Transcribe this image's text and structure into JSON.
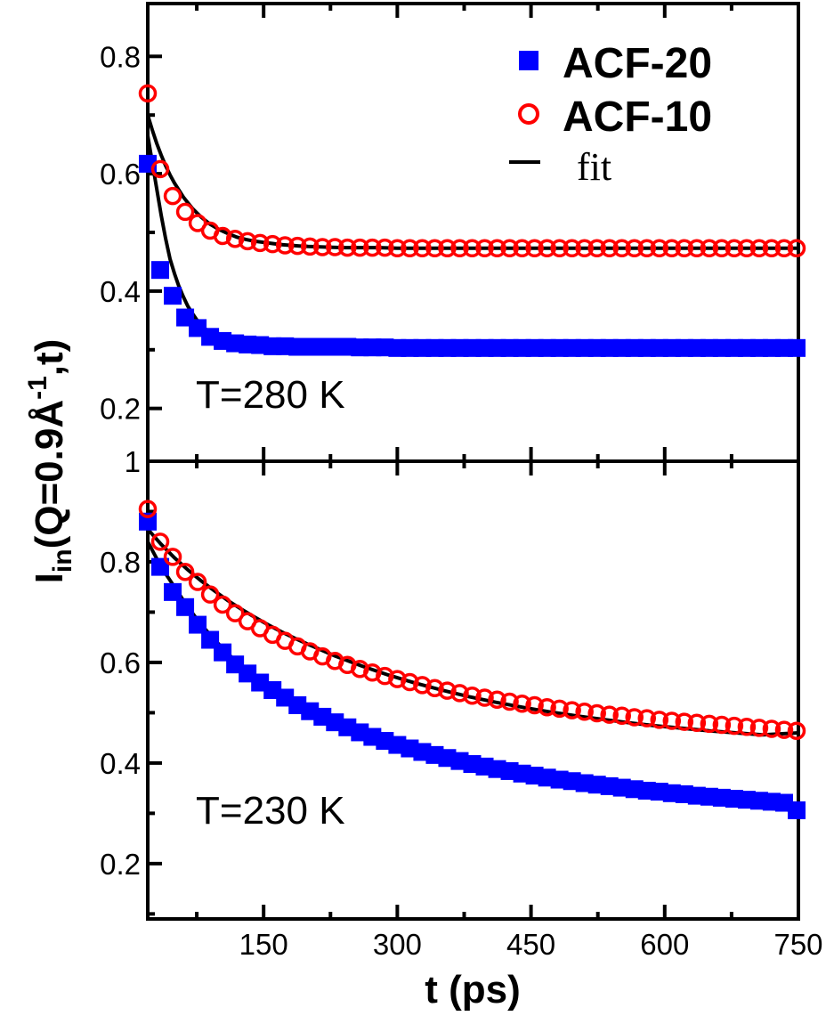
{
  "chart_data": [
    {
      "type": "scatter",
      "panel": "top",
      "annotation": "T=280 K",
      "xlim": [
        20,
        750
      ],
      "ylim": [
        0.11,
        0.89
      ],
      "y_ticks": [
        "0.2",
        "0.4",
        "0.6",
        "0.8"
      ],
      "legend": {
        "placement": "top-right",
        "entries": [
          "ACF-20",
          "ACF-10",
          "fit"
        ]
      },
      "colors": {
        "ACF-20": "#0000ff",
        "ACF-10": "#ff0000",
        "fit": "#000000"
      },
      "series": [
        {
          "name": "ACF-20",
          "marker": "filled-square",
          "x": [
            20,
            34,
            48,
            62,
            76,
            90,
            104,
            118,
            132,
            146,
            160,
            174,
            188,
            202,
            216,
            230,
            244,
            258,
            272,
            286,
            300,
            314,
            328,
            342,
            356,
            370,
            384,
            398,
            412,
            426,
            440,
            454,
            468,
            482,
            496,
            510,
            524,
            538,
            552,
            566,
            580,
            594,
            608,
            622,
            636,
            650,
            664,
            678,
            692,
            706,
            720,
            734,
            748
          ],
          "y": [
            0.617,
            0.436,
            0.392,
            0.355,
            0.337,
            0.322,
            0.315,
            0.311,
            0.309,
            0.308,
            0.306,
            0.306,
            0.305,
            0.305,
            0.305,
            0.305,
            0.305,
            0.304,
            0.304,
            0.304,
            0.303,
            0.303,
            0.303,
            0.303,
            0.303,
            0.303,
            0.303,
            0.303,
            0.303,
            0.303,
            0.303,
            0.303,
            0.303,
            0.303,
            0.303,
            0.303,
            0.303,
            0.303,
            0.303,
            0.303,
            0.303,
            0.303,
            0.303,
            0.303,
            0.303,
            0.303,
            0.303,
            0.303,
            0.303,
            0.303,
            0.303,
            0.303,
            0.303
          ]
        },
        {
          "name": "ACF-10",
          "marker": "open-circle",
          "x": [
            20,
            34,
            48,
            62,
            76,
            90,
            104,
            118,
            132,
            146,
            160,
            174,
            188,
            202,
            216,
            230,
            244,
            258,
            272,
            286,
            300,
            314,
            328,
            342,
            356,
            370,
            384,
            398,
            412,
            426,
            440,
            454,
            468,
            482,
            496,
            510,
            524,
            538,
            552,
            566,
            580,
            594,
            608,
            622,
            636,
            650,
            664,
            678,
            692,
            706,
            720,
            734,
            748
          ],
          "y": [
            0.737,
            0.608,
            0.562,
            0.535,
            0.516,
            0.503,
            0.494,
            0.489,
            0.485,
            0.482,
            0.48,
            0.478,
            0.477,
            0.476,
            0.475,
            0.475,
            0.474,
            0.474,
            0.474,
            0.474,
            0.473,
            0.473,
            0.473,
            0.473,
            0.473,
            0.473,
            0.473,
            0.473,
            0.473,
            0.473,
            0.473,
            0.473,
            0.473,
            0.473,
            0.473,
            0.473,
            0.473,
            0.473,
            0.473,
            0.473,
            0.473,
            0.473,
            0.473,
            0.473,
            0.473,
            0.473,
            0.473,
            0.473,
            0.473,
            0.473,
            0.473,
            0.473,
            0.473
          ]
        },
        {
          "name": "fit",
          "marker": "line",
          "x": [
            6,
            10,
            15,
            20,
            25,
            30,
            35,
            40,
            45,
            50,
            55,
            60,
            65,
            70,
            75,
            80,
            85,
            90,
            95,
            100,
            110,
            120,
            130,
            140,
            150,
            160,
            170,
            180,
            190,
            200,
            220,
            240,
            260,
            280,
            300,
            340,
            380,
            420,
            460,
            500,
            550,
            600,
            650,
            700,
            750
          ],
          "y": [
            0.785,
            0.74,
            0.7,
            0.665,
            0.62,
            0.575,
            0.53,
            0.49,
            0.455,
            0.43,
            0.408,
            0.39,
            0.374,
            0.362,
            0.351,
            0.342,
            0.335,
            0.328,
            0.323,
            0.319,
            0.313,
            0.309,
            0.307,
            0.306,
            0.305,
            0.304,
            0.304,
            0.303,
            0.303,
            0.303,
            0.303,
            0.303,
            0.303,
            0.303,
            0.303,
            0.303,
            0.303,
            0.303,
            0.303,
            0.303,
            0.303,
            0.303,
            0.303,
            0.303,
            0.303
          ]
        },
        {
          "name": "fit",
          "marker": "line",
          "x": [
            6,
            10,
            15,
            20,
            25,
            30,
            35,
            40,
            45,
            50,
            60,
            70,
            80,
            90,
            100,
            110,
            120,
            130,
            140,
            150,
            160,
            170,
            180,
            190,
            200,
            220,
            240,
            260,
            280,
            300,
            340,
            380,
            420,
            460,
            500,
            550,
            600,
            650,
            700,
            750
          ],
          "y": [
            0.8,
            0.765,
            0.728,
            0.7,
            0.675,
            0.652,
            0.632,
            0.614,
            0.598,
            0.584,
            0.56,
            0.541,
            0.526,
            0.514,
            0.505,
            0.498,
            0.492,
            0.488,
            0.485,
            0.483,
            0.481,
            0.479,
            0.478,
            0.477,
            0.476,
            0.475,
            0.474,
            0.474,
            0.474,
            0.473,
            0.473,
            0.473,
            0.473,
            0.473,
            0.473,
            0.473,
            0.473,
            0.473,
            0.473,
            0.473
          ]
        }
      ]
    },
    {
      "type": "scatter",
      "panel": "bottom",
      "annotation": "T=230 K",
      "xlim": [
        20,
        750
      ],
      "ylim": [
        0.09,
        1.0
      ],
      "y_ticks": [
        "0.2",
        "0.4",
        "0.6",
        "0.8",
        "1"
      ],
      "x_ticks": [
        "150",
        "300",
        "450",
        "600",
        "750"
      ],
      "xlabel": "t (ps)",
      "ylabel": "I_in(Q=0.9Å^-1,t)",
      "series": [
        {
          "name": "ACF-20",
          "marker": "filled-square",
          "x": [
            20,
            34,
            48,
            62,
            76,
            90,
            104,
            118,
            132,
            146,
            160,
            174,
            188,
            202,
            216,
            230,
            244,
            258,
            272,
            286,
            300,
            314,
            328,
            342,
            356,
            370,
            384,
            398,
            412,
            426,
            440,
            454,
            468,
            482,
            496,
            510,
            524,
            538,
            552,
            566,
            580,
            594,
            608,
            622,
            636,
            650,
            664,
            678,
            692,
            706,
            720,
            734,
            748
          ],
          "y": [
            0.88,
            0.79,
            0.74,
            0.71,
            0.675,
            0.645,
            0.62,
            0.596,
            0.578,
            0.56,
            0.545,
            0.53,
            0.515,
            0.503,
            0.492,
            0.481,
            0.471,
            0.461,
            0.452,
            0.444,
            0.436,
            0.429,
            0.422,
            0.416,
            0.41,
            0.404,
            0.398,
            0.393,
            0.388,
            0.384,
            0.379,
            0.375,
            0.371,
            0.367,
            0.364,
            0.36,
            0.357,
            0.354,
            0.351,
            0.348,
            0.345,
            0.343,
            0.34,
            0.338,
            0.335,
            0.333,
            0.331,
            0.329,
            0.327,
            0.325,
            0.323,
            0.321,
            0.306
          ]
        },
        {
          "name": "ACF-10",
          "marker": "open-circle",
          "x": [
            20,
            34,
            48,
            62,
            76,
            90,
            104,
            118,
            132,
            146,
            160,
            174,
            188,
            202,
            216,
            230,
            244,
            258,
            272,
            286,
            300,
            314,
            328,
            342,
            356,
            370,
            384,
            398,
            412,
            426,
            440,
            454,
            468,
            482,
            496,
            510,
            524,
            538,
            552,
            566,
            580,
            594,
            608,
            622,
            636,
            650,
            664,
            678,
            692,
            706,
            720,
            734,
            748
          ],
          "y": [
            0.905,
            0.84,
            0.81,
            0.78,
            0.76,
            0.735,
            0.715,
            0.698,
            0.682,
            0.668,
            0.655,
            0.643,
            0.632,
            0.622,
            0.612,
            0.603,
            0.595,
            0.587,
            0.58,
            0.573,
            0.567,
            0.561,
            0.555,
            0.549,
            0.544,
            0.539,
            0.534,
            0.53,
            0.526,
            0.522,
            0.518,
            0.515,
            0.511,
            0.508,
            0.505,
            0.502,
            0.499,
            0.496,
            0.494,
            0.491,
            0.489,
            0.486,
            0.484,
            0.482,
            0.48,
            0.478,
            0.476,
            0.474,
            0.472,
            0.47,
            0.468,
            0.466,
            0.464
          ]
        },
        {
          "name": "fit",
          "marker": "line",
          "x": [
            6,
            20,
            35,
            50,
            65,
            80,
            95,
            110,
            125,
            140,
            155,
            170,
            185,
            200,
            230,
            260,
            290,
            320,
            350,
            380,
            410,
            440,
            470,
            500,
            530,
            560,
            590,
            620,
            650,
            680,
            710,
            750
          ],
          "y": [
            0.885,
            0.84,
            0.79,
            0.75,
            0.71,
            0.675,
            0.645,
            0.617,
            0.593,
            0.571,
            0.551,
            0.533,
            0.516,
            0.501,
            0.476,
            0.455,
            0.437,
            0.421,
            0.407,
            0.394,
            0.383,
            0.372,
            0.363,
            0.354,
            0.346,
            0.339,
            0.333,
            0.327,
            0.321,
            0.316,
            0.311,
            0.305
          ]
        },
        {
          "name": "fit",
          "marker": "line",
          "x": [
            6,
            20,
            35,
            50,
            65,
            80,
            95,
            110,
            125,
            140,
            155,
            170,
            185,
            200,
            230,
            260,
            290,
            320,
            350,
            380,
            410,
            440,
            470,
            500,
            530,
            560,
            590,
            620,
            650,
            680,
            710,
            750
          ],
          "y": [
            0.895,
            0.865,
            0.835,
            0.808,
            0.784,
            0.762,
            0.742,
            0.723,
            0.706,
            0.69,
            0.675,
            0.661,
            0.648,
            0.636,
            0.613,
            0.593,
            0.575,
            0.559,
            0.545,
            0.532,
            0.521,
            0.511,
            0.502,
            0.494,
            0.487,
            0.48,
            0.474,
            0.469,
            0.464,
            0.46,
            0.456,
            0.46
          ]
        }
      ]
    }
  ]
}
